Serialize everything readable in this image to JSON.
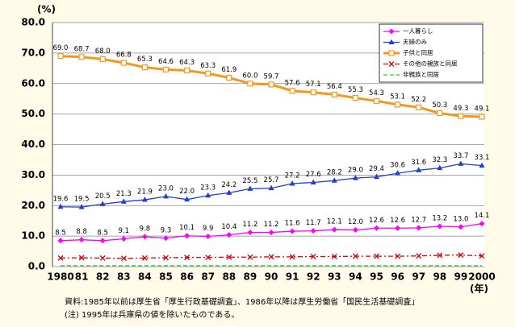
{
  "chart_data": {
    "type": "line",
    "y_unit": "(%)",
    "x_unit": "(年)",
    "notes": [
      "資料:1985年以前は厚生省「厚生行政基礎調査」、1986年以降は厚生労働省「国民生活基礎調査」",
      "(注) 1995年は兵庫県の値を除いたものである。"
    ],
    "categories": [
      "1980",
      "81",
      "82",
      "83",
      "84",
      "85",
      "86",
      "87",
      "88",
      "89",
      "90",
      "91",
      "92",
      "93",
      "94",
      "95",
      "96",
      "97",
      "98",
      "99",
      "2000"
    ],
    "ylim": [
      0,
      80
    ],
    "yticks": [
      {
        "value": 0,
        "label": "0.0"
      },
      {
        "value": 10,
        "label": "10.0"
      },
      {
        "value": 20,
        "label": "20.0"
      },
      {
        "value": 30,
        "label": "30.0"
      },
      {
        "value": 40,
        "label": "40.0"
      },
      {
        "value": 50,
        "label": "50.0"
      },
      {
        "value": 60,
        "label": "60.0"
      },
      {
        "value": 70,
        "label": "70.0"
      },
      {
        "value": 80,
        "label": "80.0"
      }
    ],
    "grid": true,
    "legend": "top-right",
    "series": [
      {
        "name": "一人暮らし",
        "color": "#ff00ff",
        "marker": "diamond",
        "dash": "solid",
        "values": [
          8.5,
          8.8,
          8.5,
          9.1,
          9.8,
          9.3,
          10.1,
          9.9,
          10.4,
          11.2,
          11.2,
          11.6,
          11.7,
          12.1,
          12.0,
          12.6,
          12.6,
          12.7,
          13.2,
          13.0,
          14.1
        ],
        "value_labels": [
          "8.5",
          "8.8",
          "8.5",
          "9.1",
          "9.8",
          "9.3",
          "10.1",
          "9.9",
          "10.4",
          "11.2",
          "11.2",
          "11.6",
          "11.7",
          "12.1",
          "12.0",
          "12.6",
          "12.6",
          "12.7",
          "13.2",
          "13.0",
          "14.1"
        ]
      },
      {
        "name": "夫婦のみ",
        "color": "#1f3fd0",
        "marker": "triangle",
        "dash": "solid",
        "values": [
          19.6,
          19.5,
          20.5,
          21.3,
          21.9,
          23.0,
          22.0,
          23.3,
          24.2,
          25.5,
          25.7,
          27.2,
          27.6,
          28.2,
          29.0,
          29.4,
          30.6,
          31.6,
          32.3,
          33.7,
          33.1
        ],
        "value_labels": [
          "19.6",
          "19.5",
          "20.5",
          "21.3",
          "21.9",
          "23.0",
          "22.0",
          "23.3",
          "24.2",
          "25.5",
          "25.7",
          "27.2",
          "27.6",
          "28.2",
          "29.0",
          "29.4",
          "30.6",
          "31.6",
          "32.3",
          "33.7",
          "33.1"
        ]
      },
      {
        "name": "子供と同居",
        "color": "#f7961e",
        "marker": "square",
        "dash": "solid",
        "width": 3,
        "values": [
          69.0,
          68.7,
          68.0,
          66.8,
          65.3,
          64.6,
          64.3,
          63.3,
          61.9,
          60.0,
          59.7,
          57.6,
          57.1,
          56.4,
          55.3,
          54.3,
          53.1,
          52.2,
          50.3,
          49.3,
          49.1
        ],
        "value_labels": [
          "69.0",
          "68.7",
          "68.0",
          "66.8",
          "65.3",
          "64.6",
          "64.3",
          "63.3",
          "61.9",
          "60.0",
          "59.7",
          "57.6",
          "57.1",
          "56.4",
          "55.3",
          "54.3",
          "53.1",
          "52.2",
          "50.3",
          "49.3",
          "49.1"
        ]
      },
      {
        "name": "その他の親族と同居",
        "color": "#d80000",
        "marker": "x",
        "dash": "dashdot",
        "values": [
          2.8,
          2.9,
          2.8,
          2.7,
          2.8,
          2.9,
          3.0,
          3.0,
          3.1,
          3.1,
          3.2,
          3.2,
          3.3,
          3.3,
          3.4,
          3.4,
          3.4,
          3.5,
          3.7,
          3.8,
          3.5
        ]
      },
      {
        "name": "非親族と同居",
        "color": "#33cc33",
        "marker": "none",
        "dash": "dash",
        "values": [
          0.3,
          0.3,
          0.3,
          0.3,
          0.3,
          0.3,
          0.3,
          0.3,
          0.3,
          0.3,
          0.3,
          0.3,
          0.3,
          0.3,
          0.3,
          0.3,
          0.3,
          0.3,
          0.3,
          0.3,
          0.3
        ]
      }
    ]
  }
}
